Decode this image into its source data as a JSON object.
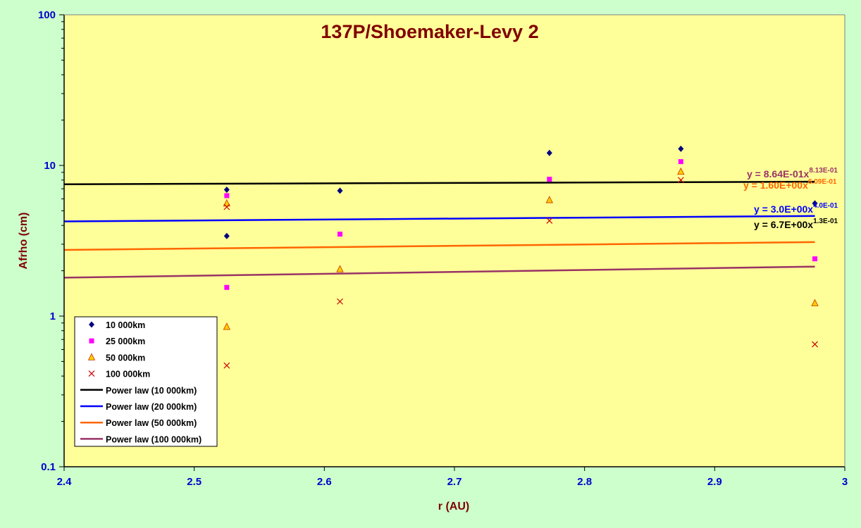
{
  "colors": {
    "page_background": "#ccffcc",
    "plot_background": "#ffff99",
    "title": "#800000",
    "axis_title": "#800000",
    "tick_labels": "#0000cc"
  },
  "chart_data": {
    "type": "scatter",
    "title": "137P/Shoemaker-Levy 2",
    "xlabel": "r (AU)",
    "ylabel": "Afrho (cm)",
    "xlim": [
      2.4,
      3.0
    ],
    "ylim": [
      0.1,
      100
    ],
    "yscale": "log",
    "xticks": [
      "2.4",
      "2.5",
      "2.6",
      "2.7",
      "2.8",
      "2.9",
      "3"
    ],
    "yticks": [
      "0.1",
      "1",
      "10",
      "100"
    ],
    "grid": false,
    "legend_position": "bottom-left",
    "series": [
      {
        "name": "10 000km",
        "marker": "diamond",
        "color": "#000080",
        "x": [
          2.525,
          2.525,
          2.612,
          2.773,
          2.874,
          2.977
        ],
        "y": [
          6.9,
          3.4,
          6.8,
          12.1,
          12.9,
          5.6
        ]
      },
      {
        "name": "25 000km",
        "marker": "square",
        "color": "#ff00ff",
        "x": [
          2.525,
          2.525,
          2.612,
          2.773,
          2.874,
          2.977
        ],
        "y": [
          6.3,
          1.55,
          3.5,
          8.1,
          10.6,
          2.4
        ]
      },
      {
        "name": "50 000km",
        "marker": "triangle",
        "color": "#ffcc00",
        "x": [
          2.525,
          2.525,
          2.612,
          2.773,
          2.874,
          2.977
        ],
        "y": [
          5.6,
          0.85,
          2.05,
          5.9,
          9.1,
          1.22
        ]
      },
      {
        "name": "100 000km",
        "marker": "x",
        "color": "#cc0000",
        "x": [
          2.525,
          2.525,
          2.612,
          2.773,
          2.874,
          2.977
        ],
        "y": [
          5.3,
          0.47,
          1.25,
          4.3,
          8.0,
          0.65
        ]
      }
    ],
    "fits": [
      {
        "name": "Power law (10 000km)",
        "color": "#000000",
        "x": [
          2.4,
          2.977
        ],
        "y": [
          7.5,
          7.8
        ]
      },
      {
        "name": "Power law (20 000km)",
        "color": "#0000ff",
        "x": [
          2.4,
          2.977
        ],
        "y": [
          4.25,
          4.62
        ]
      },
      {
        "name": "Power law (50 000km)",
        "color": "#ff6600",
        "x": [
          2.4,
          2.977
        ],
        "y": [
          2.75,
          3.1
        ]
      },
      {
        "name": "Power law (100 000km)",
        "color": "#993366",
        "x": [
          2.4,
          2.977
        ],
        "y": [
          1.8,
          2.13
        ]
      }
    ],
    "equations": [
      {
        "base": "y = 8.64E-01x",
        "exp": "8.13E-01",
        "color": "#993366"
      },
      {
        "base": "y = 1.60E+00x",
        "exp": "6.09E-01",
        "color": "#ff6600"
      },
      {
        "base": "y = 3.0E+00x",
        "exp": "4.0E-01",
        "color": "#0000ff"
      },
      {
        "base": "y = 6.7E+00x",
        "exp": "1.3E-01",
        "color": "#000000"
      }
    ]
  }
}
